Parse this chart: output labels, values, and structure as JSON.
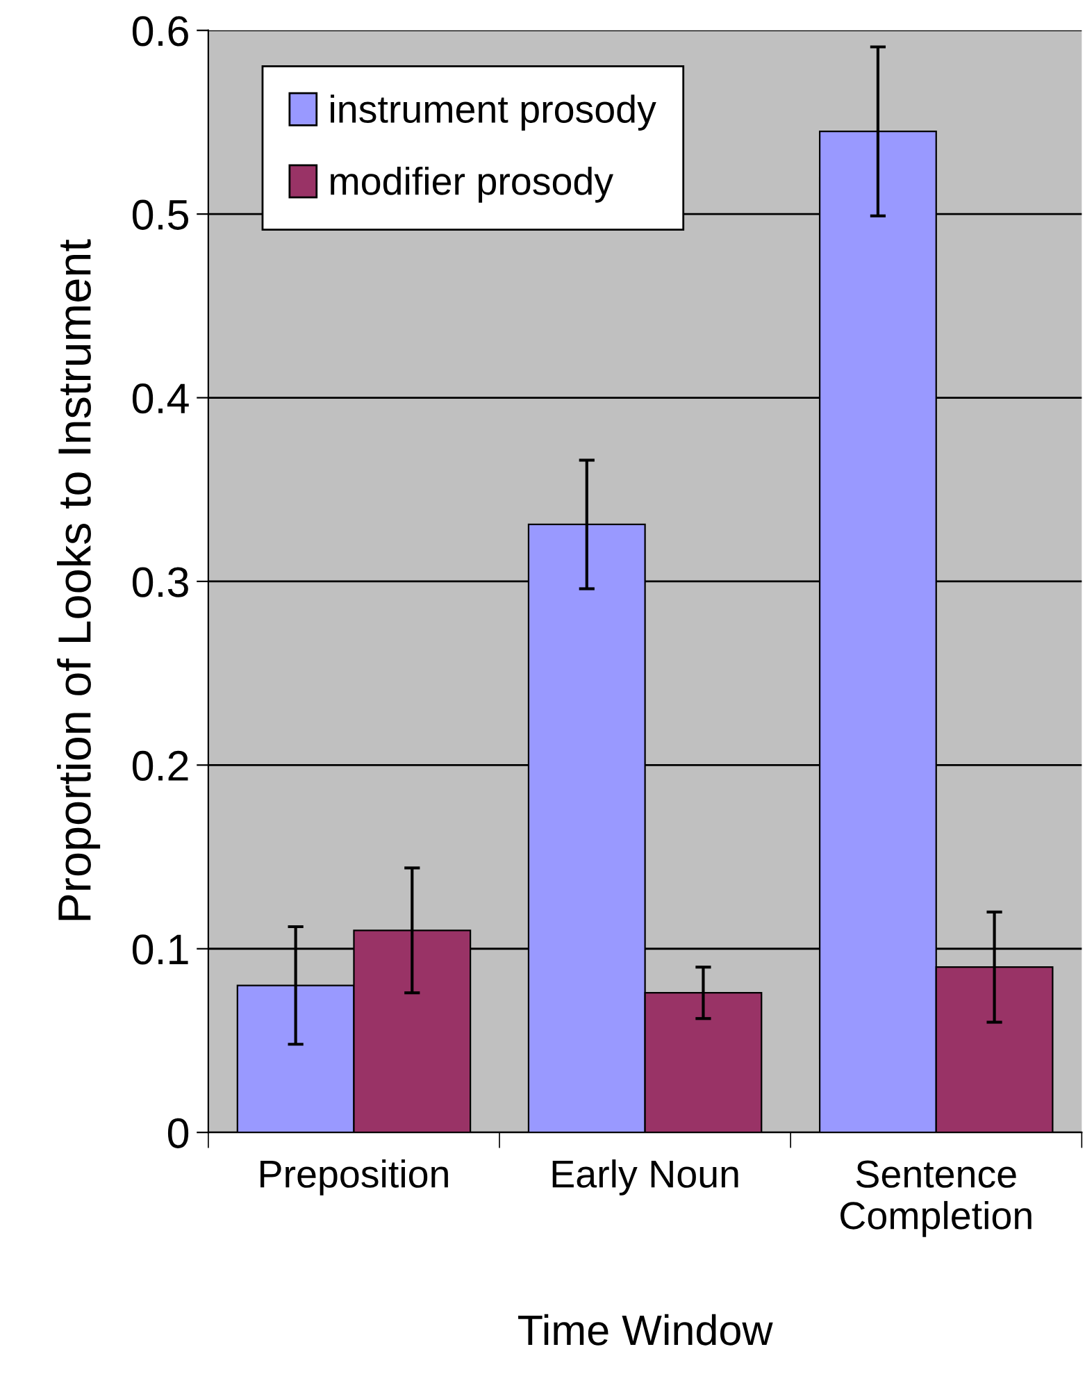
{
  "chart_data": {
    "type": "bar",
    "xlabel": "Time Window",
    "ylabel": "Proportion of Looks to Instrument",
    "categories": [
      "Preposition",
      "Early Noun",
      "Sentence\nCompletion"
    ],
    "series": [
      {
        "name": "instrument prosody",
        "color": "#9999ff",
        "values": [
          0.08,
          0.331,
          0.545
        ],
        "errors": [
          0.032,
          0.035,
          0.046
        ]
      },
      {
        "name": "modifier prosody",
        "color": "#993366",
        "values": [
          0.11,
          0.076,
          0.09
        ],
        "errors": [
          0.034,
          0.014,
          0.03
        ]
      }
    ],
    "ylim": [
      0,
      0.6
    ],
    "yticks": [
      0,
      0.1,
      0.2,
      0.3,
      0.4,
      0.5,
      0.6
    ],
    "grid": "y",
    "legend": "top left"
  }
}
